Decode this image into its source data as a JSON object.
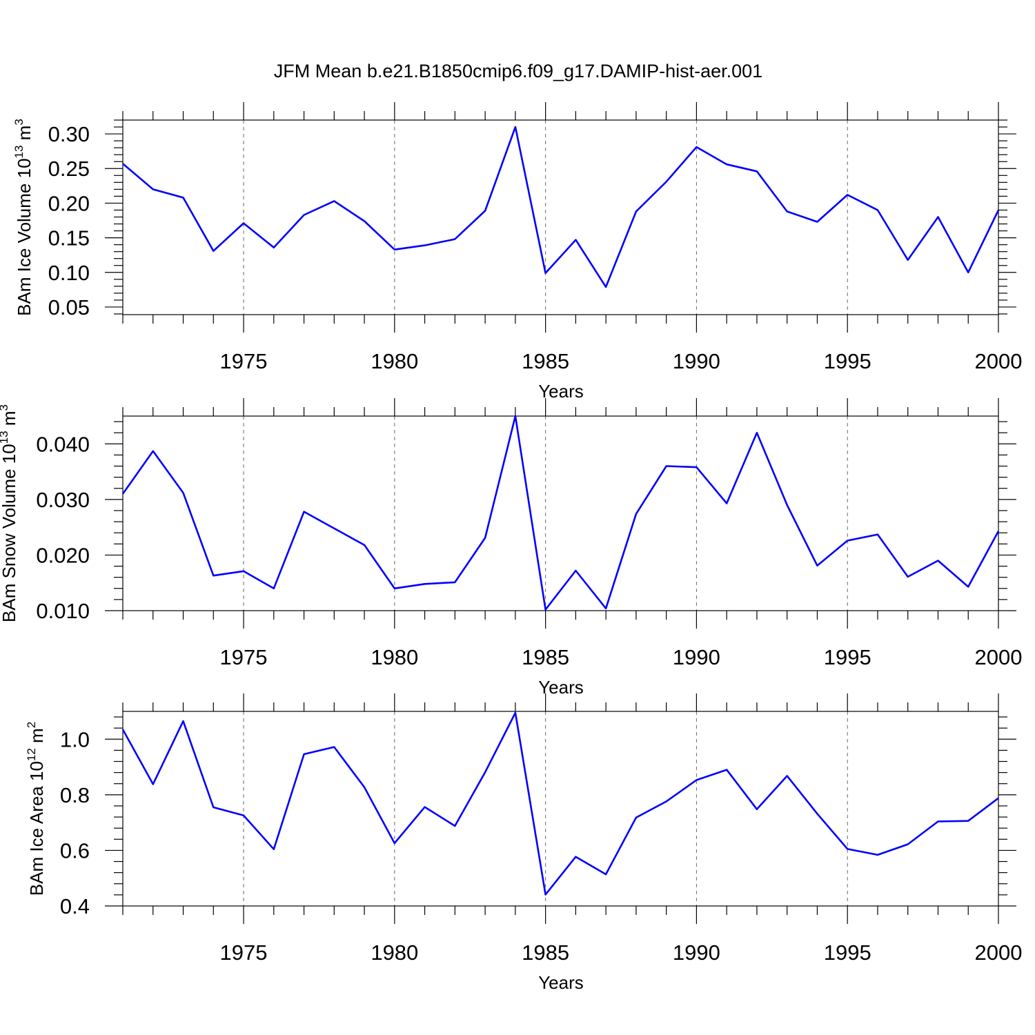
{
  "title": "JFM Mean b.e21.B1850cmip6.f09_g17.DAMIP-hist-aer.001",
  "colors": {
    "series": "#0000ff",
    "frame": "#000000",
    "grid": "#666666"
  },
  "chart_data": [
    {
      "type": "line",
      "ylabel_main": "BAm Ice Volume 10",
      "ylabel_exp": "13",
      "ylabel_unit": " m",
      "ylabel_unit_exp": "3",
      "xlabel": "Years",
      "xlim": [
        1971,
        2000
      ],
      "ylim": [
        0.039,
        0.32
      ],
      "yticks": [
        0.05,
        0.1,
        0.15,
        0.2,
        0.25,
        0.3
      ],
      "ytick_labels": [
        "0.05",
        "0.10",
        "0.15",
        "0.20",
        "0.25",
        "0.30"
      ],
      "xticks": [
        1975,
        1980,
        1985,
        1990,
        1995,
        2000
      ],
      "xtick_labels": [
        "1975",
        "1980",
        "1985",
        "1990",
        "1995",
        "2000"
      ],
      "x": [
        1971,
        1972,
        1973,
        1974,
        1975,
        1976,
        1977,
        1978,
        1979,
        1980,
        1981,
        1982,
        1983,
        1984,
        1985,
        1986,
        1987,
        1988,
        1989,
        1990,
        1991,
        1992,
        1993,
        1994,
        1995,
        1996,
        1997,
        1998,
        1999,
        2000
      ],
      "series": [
        {
          "values": [
            0.257,
            0.22,
            0.208,
            0.131,
            0.171,
            0.136,
            0.183,
            0.203,
            0.174,
            0.133,
            0.139,
            0.148,
            0.189,
            0.31,
            0.099,
            0.147,
            0.079,
            0.188,
            0.231,
            0.281,
            0.256,
            0.246,
            0.188,
            0.173,
            0.212,
            0.19,
            0.118,
            0.18,
            0.1,
            0.19
          ]
        }
      ],
      "grid": "vertical dashed at major x ticks"
    },
    {
      "type": "line",
      "ylabel_main": "BAm Snow Volume 10",
      "ylabel_exp": "13",
      "ylabel_unit": " m",
      "ylabel_unit_exp": "3",
      "xlabel": "Years",
      "xlim": [
        1971,
        2000
      ],
      "ylim": [
        0.01,
        0.045
      ],
      "yticks": [
        0.01,
        0.02,
        0.03,
        0.04
      ],
      "ytick_labels": [
        "0.010",
        "0.020",
        "0.030",
        "0.040"
      ],
      "xticks": [
        1975,
        1980,
        1985,
        1990,
        1995,
        2000
      ],
      "xtick_labels": [
        "1975",
        "1980",
        "1985",
        "1990",
        "1995",
        "2000"
      ],
      "x": [
        1971,
        1972,
        1973,
        1974,
        1975,
        1976,
        1977,
        1978,
        1979,
        1980,
        1981,
        1982,
        1983,
        1984,
        1985,
        1986,
        1987,
        1988,
        1989,
        1990,
        1991,
        1992,
        1993,
        1994,
        1995,
        1996,
        1997,
        1998,
        1999,
        2000
      ],
      "series": [
        {
          "values": [
            0.031,
            0.0387,
            0.0312,
            0.0163,
            0.0171,
            0.014,
            0.0278,
            0.0248,
            0.0218,
            0.014,
            0.0148,
            0.0151,
            0.0231,
            0.045,
            0.0102,
            0.0172,
            0.0104,
            0.0274,
            0.036,
            0.0358,
            0.0293,
            0.042,
            0.029,
            0.0181,
            0.0226,
            0.0237,
            0.0161,
            0.019,
            0.0143,
            0.0243
          ]
        }
      ],
      "grid": "vertical dashed at major x ticks"
    },
    {
      "type": "line",
      "ylabel_main": "BAm Ice Area 10",
      "ylabel_exp": "12",
      "ylabel_unit": " m",
      "ylabel_unit_exp": "2",
      "xlabel": "Years",
      "xlim": [
        1971,
        2000
      ],
      "ylim": [
        0.4,
        1.1
      ],
      "yticks": [
        0.4,
        0.6,
        0.8,
        1.0
      ],
      "ytick_labels": [
        "0.4",
        "0.6",
        "0.8",
        "1.0"
      ],
      "xticks": [
        1975,
        1980,
        1985,
        1990,
        1995,
        2000
      ],
      "xtick_labels": [
        "1975",
        "1980",
        "1985",
        "1990",
        "1995",
        "2000"
      ],
      "x": [
        1971,
        1972,
        1973,
        1974,
        1975,
        1976,
        1977,
        1978,
        1979,
        1980,
        1981,
        1982,
        1983,
        1984,
        1985,
        1986,
        1987,
        1988,
        1989,
        1990,
        1991,
        1992,
        1993,
        1994,
        1995,
        1996,
        1997,
        1998,
        1999,
        2000
      ],
      "series": [
        {
          "values": [
            1.035,
            0.838,
            1.065,
            0.755,
            0.726,
            0.604,
            0.946,
            0.972,
            0.827,
            0.626,
            0.756,
            0.688,
            0.881,
            1.095,
            0.441,
            0.577,
            0.514,
            0.718,
            0.776,
            0.853,
            0.89,
            0.748,
            0.868,
            0.732,
            0.605,
            0.584,
            0.622,
            0.704,
            0.706,
            0.788
          ]
        }
      ],
      "grid": "vertical dashed at major x ticks"
    }
  ]
}
